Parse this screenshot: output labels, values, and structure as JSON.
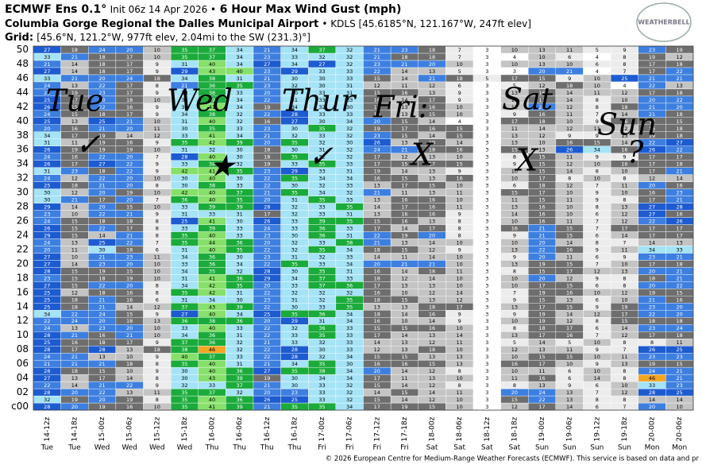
{
  "chart_data": {
    "type": "heatmap",
    "model": "ECMWF Ens 0.1°",
    "init": "Init 06z 14 Apr 2026 •",
    "title": "6 Hour Max Wind Gust (mph)",
    "location": "Columbia Gorge Regional the Dalles Municipal Airport",
    "station": "• KDLS [45.6185°N, 121.167°W, 247ft elev]",
    "grid_label": "Grid:",
    "grid_point": "[45.6°N, 121.2°W, 977ft elev, 2.04mi to the SW (231.3)°]",
    "logo": "WEATHERBELL",
    "copyright": "© 2026 European Centre for Medium-Range Weather Forecasts (ECMWF). This service is based on data and pr",
    "categories": [
      "14-12z",
      "14-18z",
      "15-00z",
      "15-06z",
      "15-12z",
      "15-18z",
      "16-00z",
      "16-06z",
      "16-12z",
      "16-18z",
      "17-00z",
      "17-06z",
      "17-12z",
      "17-18z",
      "18-00z",
      "18-06z",
      "18-12z",
      "18-18z",
      "19-00z",
      "19-06z",
      "19-12z",
      "19-18z",
      "20-00z",
      "20-06z"
    ],
    "days": [
      "Tue",
      "Tue",
      "Wed",
      "Wed",
      "Wed",
      "Wed",
      "Thu",
      "Thu",
      "Thu",
      "Thu",
      "Fri",
      "Fri",
      "Fri",
      "Fri",
      "Sat",
      "Sat",
      "Sat",
      "Sat",
      "Sun",
      "Sun",
      "Sun",
      "Sun",
      "Mon",
      "Mon"
    ],
    "members": [
      "c00",
      null,
      "02",
      null,
      "04",
      null,
      "06",
      null,
      "08",
      null,
      "10",
      null,
      "12",
      null,
      "14",
      null,
      "16",
      null,
      "18",
      null,
      "20",
      null,
      "22",
      null,
      "24",
      null,
      "26",
      null,
      "28",
      null,
      "30",
      null,
      "32",
      null,
      "34",
      null,
      "36",
      null,
      "38",
      null,
      "40",
      null,
      "42",
      null,
      "44",
      null,
      "46",
      null,
      "48",
      null,
      "50"
    ],
    "colors": [
      "#ffffff",
      "#ececec",
      "#c4c4c4",
      "#6e6e6e",
      "#3d7fe0",
      "#1d5bd0",
      "#a5e3f7",
      "#1aab3a",
      "#86e06a",
      "#f5a623"
    ],
    "annotations": [
      "Tue",
      "Wed",
      "Thur",
      "Fri:",
      "Sat",
      "Sun",
      "✓",
      "★",
      "✓",
      "X",
      "X",
      "?"
    ],
    "values": [
      [
        28,
        20,
        19,
        16,
        10,
        35,
        41,
        39,
        21,
        35,
        35,
        34,
        17,
        19,
        15,
        10,
        3,
        12,
        17,
        14,
        6,
        7,
        20,
        10
      ],
      [
        32,
        19,
        20,
        19,
        8,
        35,
        40,
        36,
        26,
        25,
        33,
        32,
        15,
        14,
        12,
        10,
        3,
        15,
        22,
        13,
        8,
        8,
        14,
        14
      ],
      [
        28,
        20,
        22,
        13,
        11,
        35,
        37,
        32,
        20,
        23,
        33,
        32,
        14,
        15,
        14,
        11,
        3,
        20,
        24,
        13,
        7,
        12,
        28,
        25
      ],
      [
        22,
        14,
        21,
        22,
        9,
        32,
        33,
        37,
        21,
        30,
        33,
        32,
        15,
        14,
        12,
        8,
        3,
        8,
        13,
        9,
        6,
        10,
        33,
        23
      ],
      [
        27,
        13,
        17,
        14,
        8,
        30,
        43,
        39,
        19,
        30,
        34,
        34,
        17,
        11,
        13,
        10,
        3,
        11,
        16,
        6,
        14,
        8,
        46,
        21
      ],
      [
        28,
        18,
        15,
        10,
        9,
        30,
        40,
        36,
        27,
        35,
        38,
        34,
        20,
        14,
        12,
        8,
        3,
        10,
        11,
        6,
        10,
        8,
        24,
        21
      ],
      [
        21,
        21,
        21,
        18,
        8,
        35,
        40,
        31,
        21,
        34,
        35,
        30,
        16,
        16,
        15,
        13,
        3,
        16,
        17,
        10,
        9,
        13,
        19,
        15
      ],
      [
        24,
        21,
        13,
        10,
        9,
        40,
        37,
        33,
        22,
        28,
        32,
        34,
        15,
        15,
        13,
        13,
        3,
        10,
        15,
        15,
        10,
        11,
        23,
        23
      ],
      [
        28,
        17,
        28,
        13,
        18,
        38,
        46,
        32,
        22,
        28,
        30,
        33,
        12,
        13,
        18,
        10,
        3,
        12,
        13,
        11,
        9,
        7,
        26,
        25
      ],
      [
        25,
        16,
        18,
        17,
        9,
        37,
        36,
        32,
        21,
        33,
        32,
        33,
        14,
        13,
        12,
        11,
        3,
        5,
        14,
        5,
        10,
        8,
        8,
        11
      ],
      [
        28,
        21,
        16,
        21,
        10,
        34,
        36,
        31,
        22,
        33,
        35,
        33,
        17,
        14,
        13,
        14,
        3,
        13,
        17,
        16,
        7,
        12,
        17,
        18
      ],
      [
        24,
        13,
        23,
        20,
        10,
        33,
        40,
        33,
        22,
        32,
        36,
        33,
        15,
        15,
        16,
        10,
        3,
        8,
        18,
        17,
        6,
        14,
        23,
        24
      ],
      [
        22,
        24,
        20,
        18,
        13,
        36,
        38,
        36,
        20,
        29,
        31,
        34,
        16,
        10,
        14,
        9,
        3,
        10,
        19,
        12,
        8,
        15,
        18,
        18
      ],
      [
        34,
        22,
        24,
        15,
        9,
        27,
        40,
        34,
        25,
        35,
        36,
        34,
        18,
        14,
        16,
        9,
        3,
        9,
        19,
        14,
        12,
        17,
        22,
        20
      ],
      [
        25,
        18,
        21,
        14,
        12,
        37,
        43,
        39,
        22,
        30,
        33,
        35,
        13,
        13,
        18,
        17,
        3,
        13,
        17,
        15,
        9,
        19,
        23,
        20
      ],
      [
        25,
        18,
        21,
        16,
        6,
        31,
        34,
        30,
        23,
        31,
        32,
        35,
        18,
        15,
        13,
        12,
        3,
        9,
        15,
        13,
        6,
        10,
        21,
        16
      ],
      [
        25,
        12,
        18,
        16,
        8,
        35,
        42,
        31,
        22,
        32,
        32,
        32,
        16,
        10,
        12,
        14,
        3,
        7,
        19,
        16,
        10,
        12,
        19,
        15
      ],
      [
        27,
        15,
        22,
        20,
        8,
        34,
        42,
        35,
        20,
        33,
        37,
        36,
        17,
        13,
        13,
        10,
        3,
        10,
        17,
        15,
        6,
        8,
        20,
        22
      ],
      [
        23,
        15,
        18,
        19,
        10,
        31,
        41,
        36,
        29,
        34,
        37,
        33,
        18,
        12,
        14,
        10,
        3,
        10,
        20,
        12,
        9,
        8,
        18,
        21
      ],
      [
        28,
        15,
        19,
        15,
        10,
        34,
        35,
        32,
        28,
        30,
        35,
        31,
        16,
        14,
        18,
        11,
        3,
        8,
        15,
        17,
        12,
        13,
        20,
        21
      ],
      [
        27,
        14,
        23,
        20,
        10,
        33,
        36,
        34,
        22,
        35,
        33,
        34,
        20,
        21,
        21,
        10,
        3,
        13,
        19,
        15,
        7,
        10,
        17,
        18
      ],
      [
        27,
        10,
        21,
        23,
        11,
        34,
        36,
        30,
        23,
        31,
        32,
        33,
        14,
        11,
        14,
        10,
        3,
        9,
        20,
        11,
        6,
        9,
        23,
        21
      ],
      [
        20,
        11,
        30,
        18,
        6,
        31,
        40,
        35,
        22,
        32,
        35,
        34,
        18,
        15,
        12,
        9,
        3,
        13,
        22,
        16,
        9,
        11,
        34,
        33
      ],
      [
        24,
        13,
        25,
        22,
        7,
        35,
        44,
        36,
        20,
        32,
        33,
        38,
        21,
        13,
        14,
        10,
        3,
        10,
        20,
        14,
        8,
        7,
        14,
        13
      ],
      [
        29,
        15,
        14,
        21,
        8,
        35,
        40,
        33,
        23,
        30,
        36,
        31,
        22,
        19,
        20,
        8,
        3,
        9,
        21,
        15,
        6,
        14,
        17,
        17
      ],
      [
        26,
        15,
        22,
        17,
        8,
        33,
        39,
        33,
        24,
        33,
        36,
        33,
        17,
        14,
        17,
        8,
        3,
        16,
        21,
        15,
        7,
        17,
        17,
        17
      ],
      [
        24,
        15,
        18,
        18,
        8,
        25,
        41,
        30,
        26,
        33,
        39,
        35,
        15,
        16,
        13,
        8,
        3,
        10,
        16,
        11,
        7,
        12,
        22,
        26
      ],
      [
        23,
        10,
        22,
        21,
        9,
        31,
        33,
        31,
        17,
        32,
        33,
        31,
        13,
        16,
        16,
        9,
        3,
        14,
        16,
        10,
        6,
        12,
        27,
        16
      ],
      [
        29,
        14,
        20,
        15,
        10,
        33,
        39,
        39,
        28,
        32,
        33,
        35,
        14,
        17,
        16,
        11,
        3,
        13,
        16,
        10,
        8,
        13,
        27,
        28
      ],
      [
        30,
        21,
        17,
        20,
        7,
        36,
        40,
        35,
        20,
        31,
        35,
        33,
        13,
        16,
        16,
        10,
        3,
        11,
        15,
        11,
        9,
        8,
        17,
        21
      ],
      [
        30,
        12,
        20,
        19,
        10,
        42,
        40,
        37,
        21,
        35,
        34,
        32,
        21,
        11,
        13,
        11,
        3,
        15,
        17,
        10,
        9,
        10,
        16,
        23
      ],
      [
        25,
        18,
        21,
        20,
        8,
        30,
        38,
        33,
        22,
        30,
        32,
        33,
        13,
        17,
        15,
        10,
        3,
        6,
        18,
        12,
        7,
        11,
        20,
        16
      ],
      [
        24,
        12,
        22,
        20,
        10,
        30,
        40,
        30,
        22,
        35,
        34,
        34,
        16,
        15,
        13,
        16,
        3,
        10,
        17,
        8,
        10,
        8,
        12,
        14
      ],
      [
        31,
        23,
        18,
        22,
        9,
        42,
        41,
        35,
        23,
        29,
        33,
        31,
        19,
        14,
        13,
        9,
        3,
        10,
        15,
        14,
        8,
        10,
        17,
        21
      ],
      [
        26,
        17,
        27,
        22,
        9,
        33,
        38,
        32,
        19,
        33,
        35,
        33,
        17,
        15,
        17,
        15,
        3,
        9,
        15,
        12,
        10,
        16,
        17,
        18
      ],
      [
        24,
        16,
        22,
        20,
        7,
        28,
        40,
        30,
        18,
        35,
        32,
        32,
        17,
        12,
        13,
        10,
        3,
        8,
        15,
        11,
        9,
        9,
        17,
        17
      ],
      [
        26,
        19,
        19,
        19,
        10,
        31,
        32,
        30,
        18,
        30,
        31,
        32,
        24,
        21,
        18,
        16,
        3,
        15,
        13,
        26,
        34,
        16,
        26,
        22
      ],
      [
        31,
        11,
        19,
        16,
        9,
        35,
        42,
        39,
        20,
        35,
        32,
        30,
        26,
        13,
        19,
        14,
        3,
        13,
        10,
        16,
        15,
        14,
        22,
        27
      ],
      [
        34,
        17,
        19,
        14,
        12,
        33,
        41,
        34,
        21,
        32,
        33,
        32,
        23,
        15,
        14,
        15,
        3,
        13,
        12,
        9,
        9,
        13,
        19,
        18
      ],
      [
        20,
        16,
        21,
        20,
        11,
        30,
        35,
        33,
        23,
        30,
        35,
        32,
        19,
        17,
        16,
        15,
        3,
        11,
        14,
        12,
        11,
        12,
        16,
        18
      ],
      [
        25,
        13,
        25,
        21,
        10,
        31,
        40,
        32,
        16,
        27,
        30,
        34,
        20,
        15,
        14,
        4,
        3,
        17,
        18,
        10,
        9,
        16,
        17,
        15
      ],
      [
        24,
        15,
        18,
        17,
        9,
        34,
        38,
        32,
        22,
        28,
        33,
        33,
        16,
        13,
        15,
        10,
        3,
        9,
        16,
        11,
        7,
        14,
        21,
        18
      ],
      [
        26,
        15,
        22,
        16,
        9,
        30,
        41,
        34,
        19,
        34,
        32,
        30,
        17,
        13,
        16,
        10,
        3,
        12,
        20,
        12,
        8,
        18,
        21,
        20
      ],
      [
        25,
        17,
        20,
        18,
        10,
        33,
        39,
        34,
        22,
        31,
        33,
        33,
        16,
        14,
        17,
        9,
        3,
        10,
        17,
        14,
        8,
        10,
        20,
        22
      ],
      [
        23,
        19,
        23,
        17,
        9,
        33,
        38,
        33,
        20,
        30,
        33,
        31,
        15,
        16,
        13,
        9,
        3,
        13,
        16,
        14,
        11,
        12,
        17,
        18
      ],
      [
        24,
        13,
        22,
        17,
        8,
        21,
        36,
        35,
        23,
        32,
        30,
        31,
        12,
        11,
        12,
        6,
        3,
        5,
        12,
        18,
        10,
        4,
        22,
        13
      ],
      [
        33,
        21,
        20,
        24,
        18,
        34,
        38,
        31,
        21,
        30,
        30,
        33,
        15,
        14,
        21,
        18,
        5,
        17,
        15,
        9,
        10,
        25,
        21,
        21
      ],
      [
        27,
        14,
        18,
        17,
        9,
        29,
        43,
        40,
        23,
        29,
        33,
        33,
        22,
        14,
        13,
        5,
        3,
        3,
        20,
        21,
        4,
        7,
        17,
        22
      ],
      [
        21,
        14,
        18,
        17,
        9,
        31,
        40,
        34,
        27,
        34,
        27,
        32,
        23,
        21,
        20,
        10,
        3,
        10,
        13,
        10,
        6,
        8,
        17,
        18
      ],
      [
        33,
        21,
        18,
        17,
        10,
        35,
        37,
        34,
        23,
        33,
        32,
        32,
        21,
        18,
        18,
        7,
        3,
        4,
        10,
        6,
        4,
        8,
        19,
        12
      ],
      [
        27,
        18,
        24,
        20,
        10,
        35,
        37,
        34,
        21,
        34,
        37,
        32,
        21,
        23,
        18,
        7,
        3,
        10,
        13,
        11,
        5,
        9,
        23,
        19
      ]
    ]
  }
}
